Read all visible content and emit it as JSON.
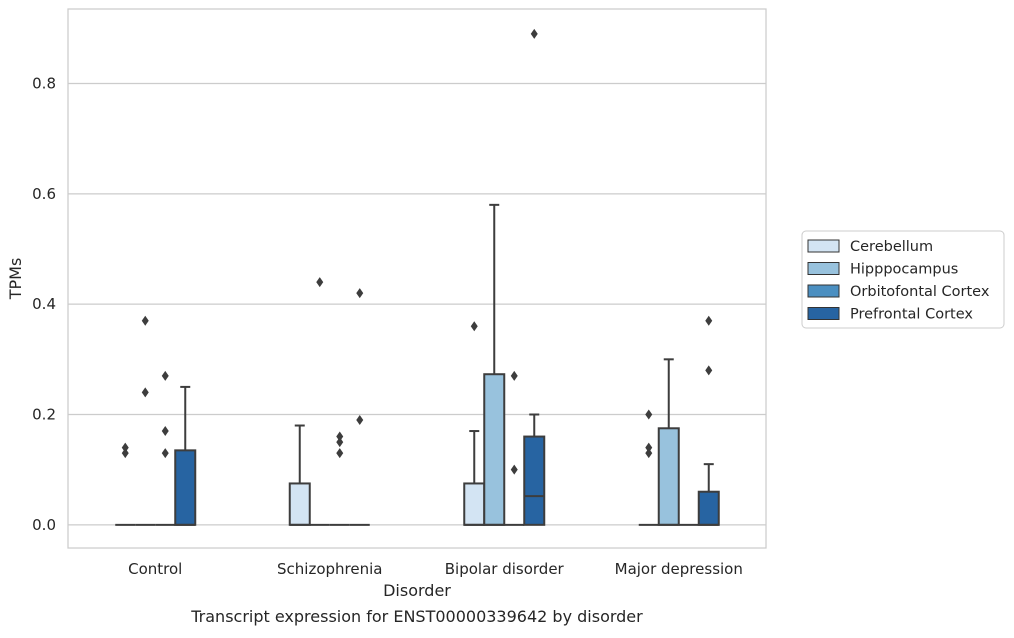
{
  "caption": "Transcript expression for ENST00000339642 by disorder",
  "colors": {
    "Cerebellum": "#d3e4f3",
    "Hipppocampus": "#98c2dd",
    "Orbitofontal Cortex": "#4b8fc1",
    "Prefrontal Cortex": "#2764a2",
    "box_edge": "#3d3d3d",
    "grid": "#cccccc",
    "axes_edge": "#cccccc"
  },
  "chart_data": {
    "type": "box",
    "title": "",
    "xlabel": "Disorder",
    "ylabel": "TPMs",
    "ylim": [
      -0.042,
      0.935
    ],
    "yticks": [
      0.0,
      0.2,
      0.4,
      0.6,
      0.8
    ],
    "ytick_labels": [
      "0.0",
      "0.2",
      "0.4",
      "0.6",
      "0.8"
    ],
    "grid": "horizontal",
    "legend_position": "outside-right",
    "categories": [
      "Control",
      "Schizophrenia",
      "Bipolar disorder",
      "Major depression"
    ],
    "series": [
      {
        "name": "Cerebellum",
        "boxes": [
          {
            "q1": 0,
            "median": 0,
            "q3": 0,
            "whislo": 0,
            "whishi": 0,
            "fliers": [
              0.13,
              0.14
            ]
          },
          {
            "q1": 0,
            "median": 0,
            "q3": 0.075,
            "whislo": 0,
            "whishi": 0.18,
            "fliers": []
          },
          {
            "q1": 0,
            "median": 0,
            "q3": 0.075,
            "whislo": 0,
            "whishi": 0.17,
            "fliers": [
              0.36
            ]
          },
          {
            "q1": 0,
            "median": 0,
            "q3": 0,
            "whislo": 0,
            "whishi": 0,
            "fliers": [
              0.13,
              0.14,
              0.2
            ]
          }
        ]
      },
      {
        "name": "Hipppocampus",
        "boxes": [
          {
            "q1": 0,
            "median": 0,
            "q3": 0,
            "whislo": 0,
            "whishi": 0,
            "fliers": [
              0.24,
              0.37
            ]
          },
          {
            "q1": 0,
            "median": 0,
            "q3": 0,
            "whislo": 0,
            "whishi": 0,
            "fliers": [
              0.44
            ]
          },
          {
            "q1": 0,
            "median": 0,
            "q3": 0.273,
            "whislo": 0,
            "whishi": 0.58,
            "fliers": []
          },
          {
            "q1": 0,
            "median": 0,
            "q3": 0.175,
            "whislo": 0,
            "whishi": 0.3,
            "fliers": []
          }
        ]
      },
      {
        "name": "Orbitofontal Cortex",
        "boxes": [
          {
            "q1": 0,
            "median": 0,
            "q3": 0,
            "whislo": 0,
            "whishi": 0,
            "fliers": [
              0.13,
              0.17,
              0.27
            ]
          },
          {
            "q1": 0,
            "median": 0,
            "q3": 0,
            "whislo": 0,
            "whishi": 0,
            "fliers": [
              0.13,
              0.15,
              0.16
            ]
          },
          {
            "q1": 0,
            "median": 0,
            "q3": 0,
            "whislo": 0,
            "whishi": 0,
            "fliers": [
              0.1,
              0.27
            ]
          },
          {
            "q1": 0,
            "median": 0,
            "q3": 0,
            "whislo": 0,
            "whishi": 0,
            "fliers": []
          }
        ]
      },
      {
        "name": "Prefrontal Cortex",
        "boxes": [
          {
            "q1": 0,
            "median": 0,
            "q3": 0.135,
            "whislo": 0,
            "whishi": 0.25,
            "fliers": []
          },
          {
            "q1": 0,
            "median": 0,
            "q3": 0,
            "whislo": 0,
            "whishi": 0,
            "fliers": [
              0.19,
              0.42
            ]
          },
          {
            "q1": 0,
            "median": 0.052,
            "q3": 0.16,
            "whislo": 0,
            "whishi": 0.2,
            "fliers": [
              0.89
            ]
          },
          {
            "q1": 0,
            "median": 0,
            "q3": 0.06,
            "whislo": 0,
            "whishi": 0.11,
            "fliers": [
              0.28,
              0.37
            ]
          }
        ]
      }
    ]
  }
}
